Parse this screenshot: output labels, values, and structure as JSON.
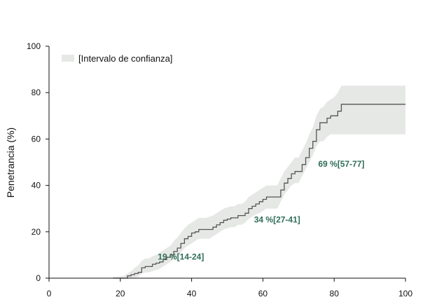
{
  "colors": {
    "line": "#555555",
    "band": "#e6e8e6",
    "annotation": "#2f6e58",
    "axis": "#111111"
  },
  "chart_data": {
    "type": "line",
    "title": "",
    "xlabel": "",
    "ylabel": "Penetrancia (%)",
    "xlim": [
      0,
      100
    ],
    "ylim": [
      0,
      100
    ],
    "x_ticks": [
      0,
      20,
      40,
      60,
      80,
      100
    ],
    "y_ticks": [
      0,
      20,
      40,
      60,
      80,
      100
    ],
    "grid": false,
    "legend": {
      "placement": "top-left",
      "entries": [
        {
          "label": "[Intervalo de confianza]"
        }
      ]
    },
    "series": [
      {
        "x": [
          18,
          21,
          22,
          23,
          24,
          25,
          26,
          27,
          28,
          29,
          30,
          31,
          32,
          33,
          34,
          35,
          36,
          37,
          38,
          39,
          40,
          41,
          42,
          43,
          44,
          45,
          46,
          47,
          48,
          49,
          50,
          51,
          52,
          53,
          54,
          55,
          56,
          57,
          58,
          59,
          60,
          61,
          62,
          63,
          64,
          65,
          66,
          67,
          68,
          69,
          70,
          71,
          72,
          73,
          74,
          75,
          76,
          77,
          78,
          79,
          80,
          81,
          82,
          83,
          100
        ],
        "y": [
          0,
          0,
          1,
          1.5,
          2,
          2.5,
          4.5,
          5,
          5,
          6,
          6.5,
          7,
          8,
          9,
          10,
          11.5,
          13,
          15,
          17,
          18,
          19.5,
          20,
          21,
          21,
          21,
          21,
          22,
          23,
          24,
          25,
          25.5,
          26,
          26,
          27,
          27,
          28,
          30,
          31,
          32,
          33,
          34,
          35,
          35,
          35,
          35,
          38,
          41,
          43,
          45,
          46,
          46,
          49,
          52,
          56,
          59,
          64,
          67,
          67,
          69,
          70,
          70,
          72,
          75,
          75,
          75
        ],
        "lower": [
          0,
          0,
          0,
          0,
          0,
          0.5,
          2,
          2.5,
          2.5,
          3,
          3.5,
          4,
          5,
          6,
          7,
          8,
          9.5,
          11,
          13,
          14,
          15,
          16,
          17,
          17,
          17,
          17,
          18,
          19,
          20,
          21,
          21.5,
          22,
          22,
          23,
          23,
          24,
          25.5,
          26.5,
          27.5,
          28,
          29,
          30,
          30,
          30,
          30,
          33,
          36,
          38,
          40,
          41,
          41,
          44,
          47,
          50,
          53,
          57,
          59,
          59,
          61,
          62,
          62,
          62,
          62,
          62,
          62
        ],
        "upper": [
          0.5,
          1,
          2,
          3,
          4.5,
          5.5,
          7.5,
          8.5,
          8.5,
          9.5,
          10,
          11,
          12,
          13,
          14,
          16,
          17.5,
          19.5,
          21.5,
          23,
          24,
          25,
          26,
          26,
          26,
          26.5,
          27,
          28,
          29,
          30,
          30.5,
          31,
          31,
          32,
          32,
          33,
          35,
          36,
          37,
          38,
          39,
          40,
          40,
          40,
          40,
          43,
          46,
          48,
          50,
          52,
          52,
          55,
          58,
          62,
          65,
          70,
          73,
          74,
          76,
          77,
          78,
          80,
          83,
          83,
          83
        ]
      }
    ],
    "annotations": [
      {
        "text": "19 %[14-24]",
        "x": 37,
        "y": 8
      },
      {
        "text": "34 %[27-41]",
        "x": 64,
        "y": 24
      },
      {
        "text": "69 %[57-77]",
        "x": 82,
        "y": 48
      }
    ]
  }
}
